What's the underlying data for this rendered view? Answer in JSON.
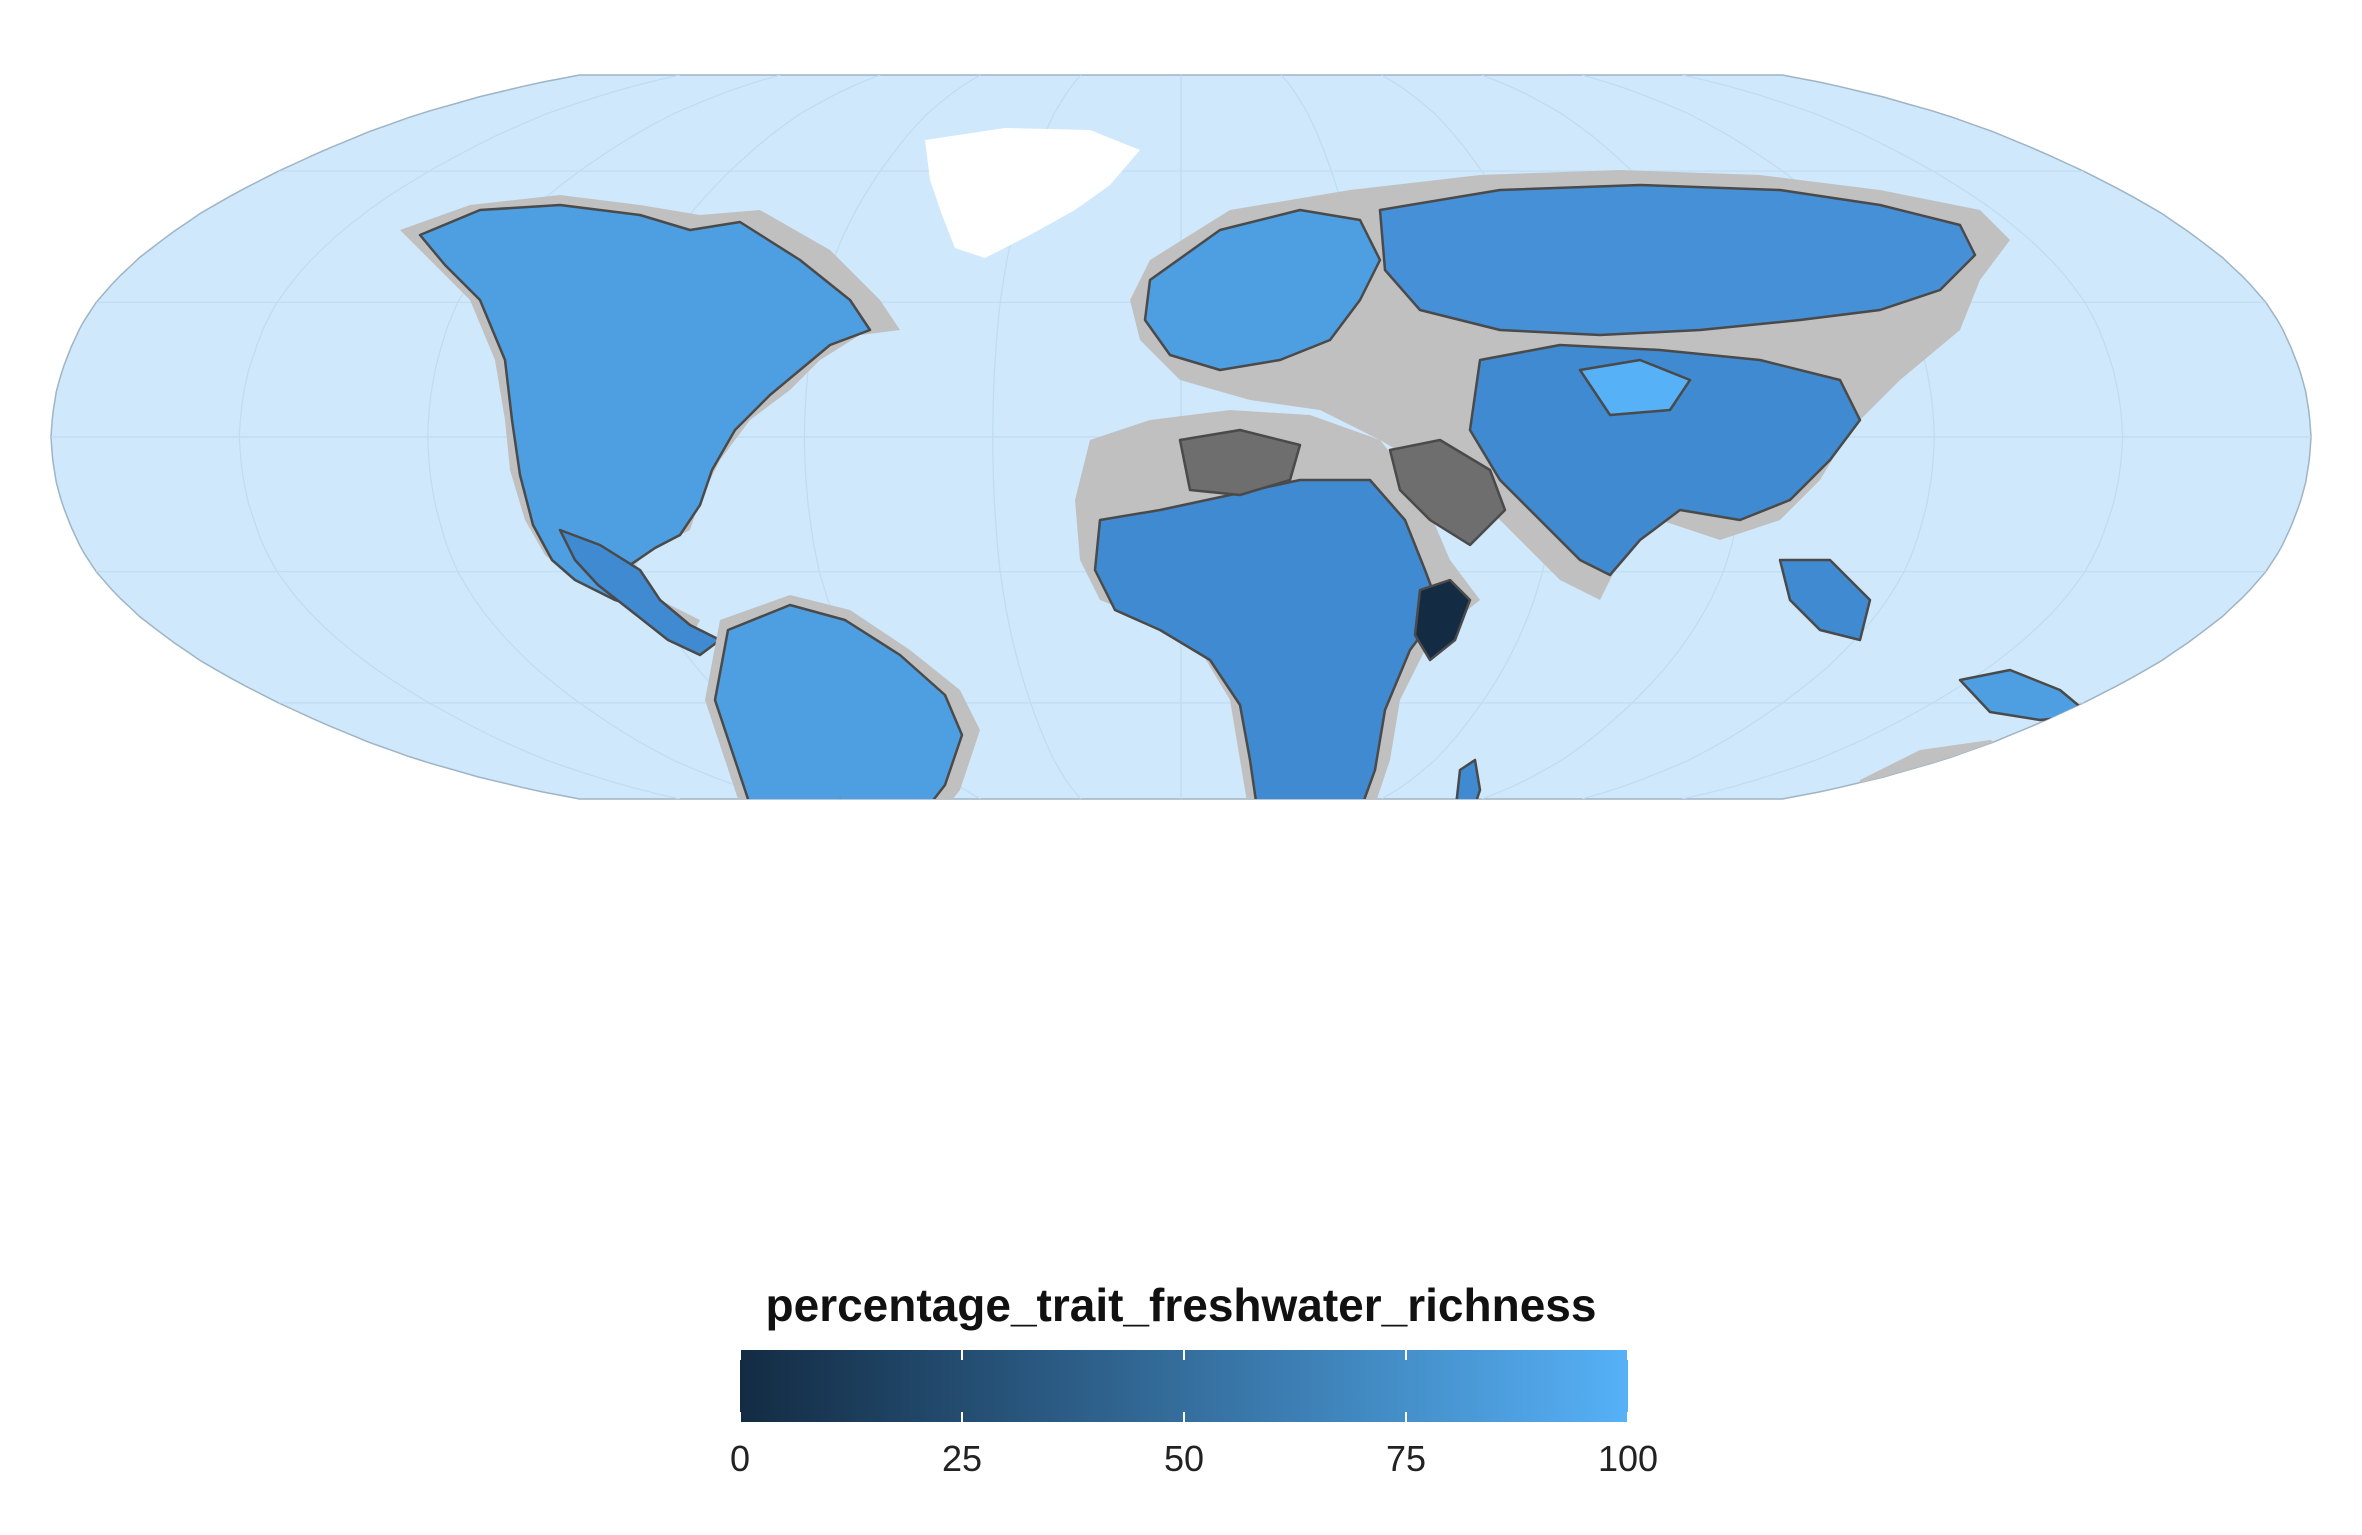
{
  "map": {
    "projection": "robinson",
    "ocean_color": "#cfe8fb",
    "land_nodata_color": "#c0c0c0",
    "basin_nodata_color": "#6e6e6e",
    "ice_color": "#ffffff",
    "border_color": "#4a4a4a"
  },
  "legend": {
    "title": "percentage_trait_freshwater_richness",
    "ticks": [
      "0",
      "25",
      "50",
      "75",
      "100"
    ],
    "domain": [
      0,
      100
    ],
    "tick_values": [
      0,
      25,
      50,
      75,
      100
    ],
    "color_low": "#132b43",
    "color_high": "#56b1f7"
  }
}
